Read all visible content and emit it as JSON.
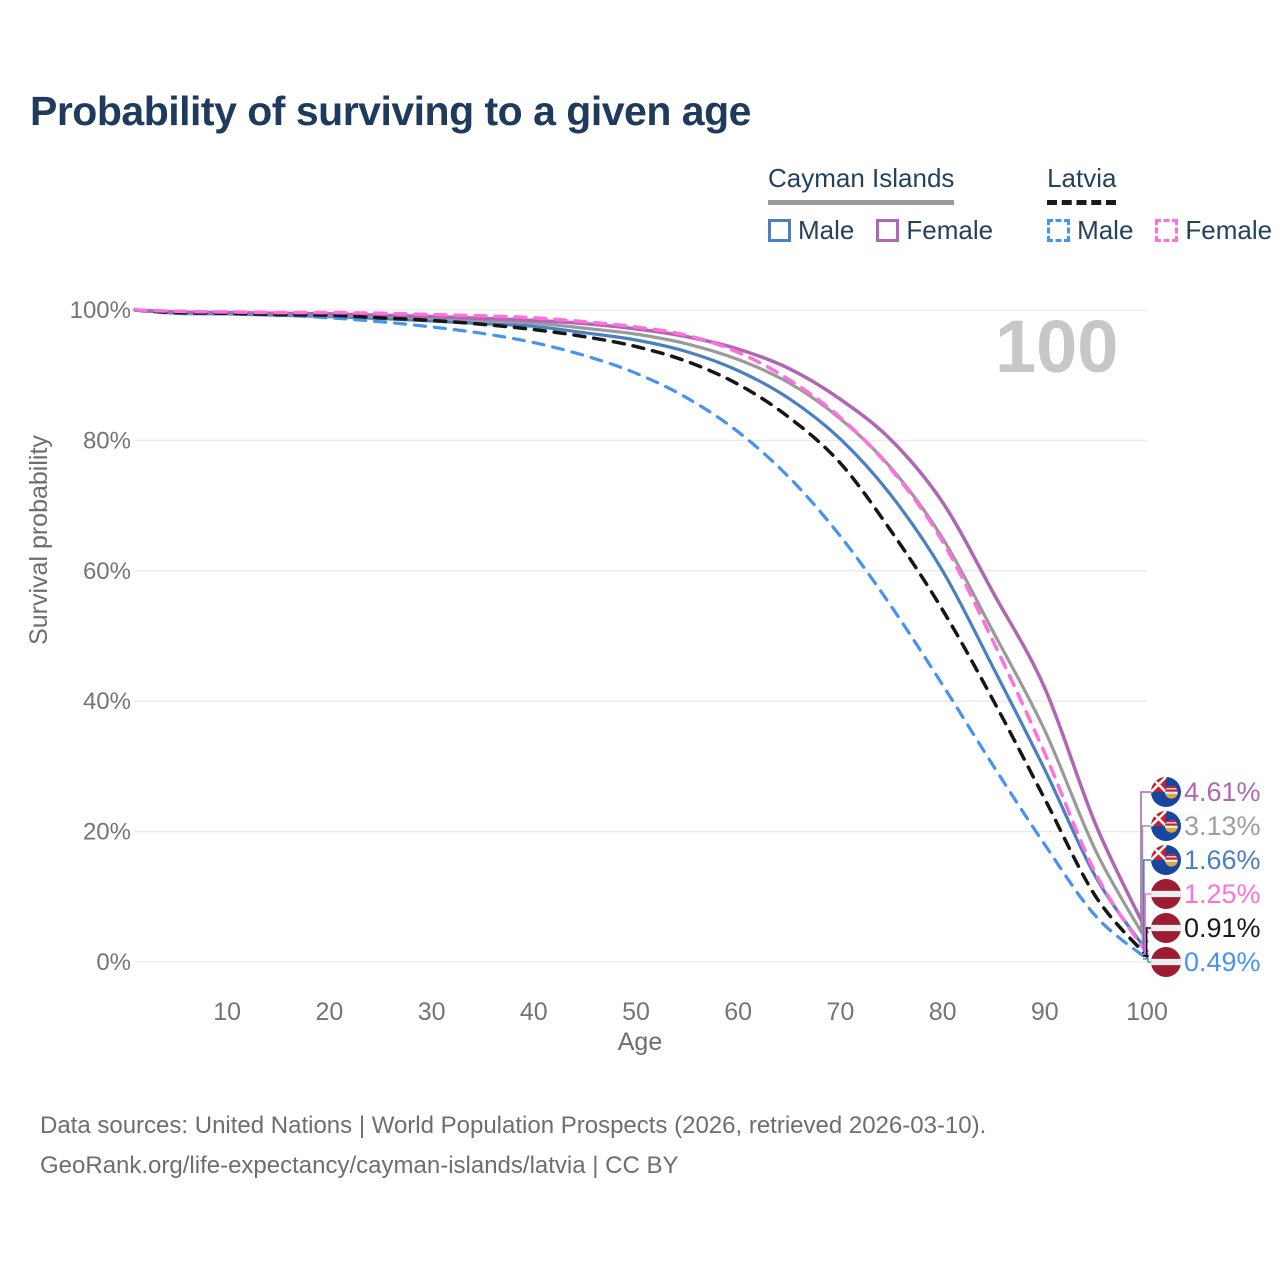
{
  "title": "Probability of surviving to a given age",
  "legend": {
    "groups": [
      {
        "label": "Cayman Islands",
        "underline": "solid",
        "underline_color": "#999999",
        "items": [
          {
            "label": "Male",
            "color": "#4a7fc1",
            "dash": "solid"
          },
          {
            "label": "Female",
            "color": "#b066b3",
            "dash": "solid"
          }
        ]
      },
      {
        "label": "Latvia",
        "underline": "dashed",
        "underline_color": "#1a1a1a",
        "items": [
          {
            "label": "Male",
            "color": "#4793f0",
            "dash": "dashed"
          },
          {
            "label": "Female",
            "color": "#ff70dd",
            "dash": "dashed"
          }
        ]
      }
    ]
  },
  "footer": {
    "line1": "Data sources: United Nations | World Population Prospects (2026, retrieved 2026-03-10).",
    "line2": "GeoRank.org/life-expectancy/cayman-islands/latvia | CC BY"
  },
  "chart_data": {
    "type": "line",
    "title": "Probability of surviving to a given age",
    "xlabel": "Age",
    "ylabel": "Survival probability",
    "xlim": [
      0,
      100
    ],
    "ylim": [
      0,
      100
    ],
    "grid": "horizontal",
    "legend_position": "top-right",
    "watermark": "100",
    "x_ticks": [
      10,
      20,
      30,
      40,
      50,
      60,
      70,
      80,
      90,
      100
    ],
    "y_ticks": [
      {
        "value": 100,
        "label": "100%"
      },
      {
        "value": 80,
        "label": "80%"
      },
      {
        "value": 60,
        "label": "60%"
      },
      {
        "value": 40,
        "label": "40%"
      },
      {
        "value": 20,
        "label": "20%"
      },
      {
        "value": 0,
        "label": "0%"
      }
    ],
    "x": [
      0,
      5,
      10,
      15,
      20,
      25,
      30,
      35,
      40,
      45,
      50,
      55,
      60,
      65,
      70,
      75,
      80,
      85,
      90,
      95,
      100
    ],
    "series": [
      {
        "name": "Cayman Islands — Female",
        "country": "Cayman Islands",
        "sex": "Female",
        "color": "#b066b3",
        "label_color": "#b066b3",
        "dash": "solid",
        "width": 3.5,
        "flag": "cayman-islands",
        "end_label": "4.61%",
        "end_value": 4.61,
        "values": [
          100,
          99.7,
          99.6,
          99.5,
          99.4,
          99.2,
          99.0,
          98.7,
          98.4,
          97.9,
          97.1,
          95.9,
          94.0,
          91.0,
          86.3,
          80.0,
          70.5,
          56.5,
          42.0,
          21.0,
          4.61
        ]
      },
      {
        "name": "Cayman Islands — Both sexes",
        "country": "Cayman Islands",
        "sex": "Both sexes",
        "color": "#9a9a9a",
        "label_color": "#9e9e9e",
        "dash": "solid",
        "width": 3.2,
        "flag": "cayman-islands",
        "end_label": "3.13%",
        "end_value": 3.13,
        "values": [
          100,
          99.6,
          99.5,
          99.4,
          99.2,
          99.0,
          98.7,
          98.4,
          98.0,
          97.2,
          96.3,
          94.8,
          92.4,
          88.8,
          83.3,
          75.7,
          65.0,
          50.5,
          35.5,
          17.0,
          3.13
        ]
      },
      {
        "name": "Cayman Islands — Male",
        "country": "Cayman Islands",
        "sex": "Male",
        "color": "#4a7fc1",
        "label_color": "#4a7fc1",
        "dash": "solid",
        "width": 3.2,
        "flag": "cayman-islands",
        "end_label": "1.66%",
        "end_value": 1.66,
        "values": [
          100,
          99.5,
          99.4,
          99.2,
          99.0,
          98.7,
          98.3,
          97.9,
          97.5,
          96.5,
          95.4,
          93.6,
          90.7,
          86.4,
          80.2,
          71.5,
          60.0,
          45.0,
          29.5,
          13.0,
          1.66
        ]
      },
      {
        "name": "Latvia — Female",
        "country": "Latvia",
        "sex": "Female",
        "color": "#ff70dd",
        "label_color": "#ff70dd",
        "dash": "dashed",
        "width": 3.5,
        "flag": "latvia",
        "end_label": "1.25%",
        "end_value": 1.25,
        "values": [
          100,
          99.8,
          99.7,
          99.6,
          99.6,
          99.5,
          99.3,
          99.1,
          98.8,
          98.2,
          97.4,
          96.1,
          93.5,
          89.3,
          83.5,
          75.5,
          64.5,
          49.0,
          32.0,
          13.5,
          1.25
        ]
      },
      {
        "name": "Latvia — Both sexes",
        "country": "Latvia",
        "sex": "Both sexes",
        "color": "#161616",
        "label_color": "#1a1a1a",
        "dash": "dashed",
        "width": 3.5,
        "flag": "latvia",
        "end_label": "0.91%",
        "end_value": 0.91,
        "values": [
          100,
          99.6,
          99.5,
          99.3,
          99.2,
          98.8,
          98.4,
          97.8,
          97.0,
          95.9,
          94.4,
          92.1,
          88.6,
          83.5,
          76.5,
          66.0,
          54.0,
          40.0,
          25.0,
          10.0,
          0.91
        ]
      },
      {
        "name": "Latvia — Male",
        "country": "Latvia",
        "sex": "Male",
        "color": "#4793f0",
        "label_color": "#4793f0",
        "dash": "dashed",
        "width": 3.2,
        "flag": "latvia",
        "end_label": "0.49%",
        "end_value": 0.49,
        "values": [
          100,
          99.5,
          99.4,
          99.2,
          98.8,
          98.2,
          97.4,
          96.4,
          95.0,
          93.0,
          90.3,
          86.5,
          81.3,
          74.3,
          65.3,
          54.5,
          42.5,
          30.0,
          18.0,
          7.0,
          0.49
        ]
      }
    ]
  }
}
